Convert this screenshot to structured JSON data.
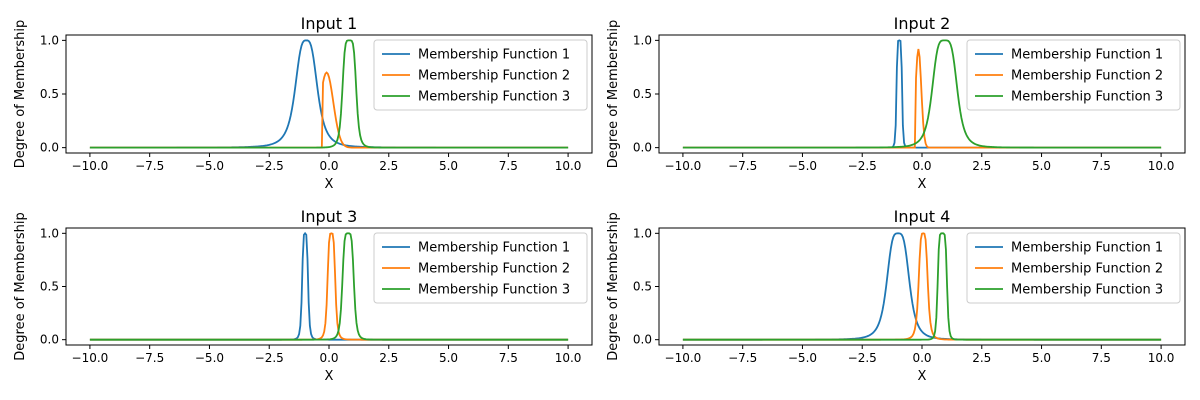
{
  "chart_data": [
    {
      "type": "line",
      "title": "Input 1",
      "xlabel": "X",
      "ylabel": "Degree of Membership",
      "xlim": [
        -11,
        11
      ],
      "ylim": [
        -0.05,
        1.05
      ],
      "xticks": [
        "−10.0",
        "−7.5",
        "−5.0",
        "−2.5",
        "0.0",
        "2.5",
        "5.0",
        "7.5",
        "10.0"
      ],
      "yticks": [
        "0.0",
        "0.5",
        "1.0"
      ],
      "grid": false,
      "legend_position": "top-right",
      "series": [
        {
          "name": "Membership Function 1",
          "color": "#1f77b4",
          "shape": "generalized-bell",
          "center": -0.95,
          "width": 0.5,
          "slope": 1.6,
          "peak": 1.0
        },
        {
          "name": "Membership Function 2",
          "color": "#ff7f0e",
          "shape": "one-sided-gaussian",
          "center": -0.1,
          "sigma": 0.28,
          "support_start": -0.3,
          "peak": 0.7
        },
        {
          "name": "Membership Function 3",
          "color": "#2ca02c",
          "shape": "generalized-bell",
          "center": 0.85,
          "width": 0.3,
          "slope": 2.5,
          "peak": 1.0
        }
      ]
    },
    {
      "type": "line",
      "title": "Input 2",
      "xlabel": "X",
      "ylabel": "Degree of Membership",
      "xlim": [
        -11,
        11
      ],
      "ylim": [
        -0.05,
        1.05
      ],
      "xticks": [
        "−10.0",
        "−7.5",
        "−5.0",
        "−2.5",
        "0.0",
        "2.5",
        "5.0",
        "7.5",
        "10.0"
      ],
      "yticks": [
        "0.0",
        "0.5",
        "1.0"
      ],
      "grid": false,
      "legend_position": "top-right",
      "series": [
        {
          "name": "Membership Function 1",
          "color": "#1f77b4",
          "shape": "generalized-bell",
          "center": -0.95,
          "width": 0.12,
          "slope": 3.0,
          "peak": 1.0
        },
        {
          "name": "Membership Function 2",
          "color": "#ff7f0e",
          "shape": "one-sided-gaussian",
          "center": -0.15,
          "sigma": 0.12,
          "support_start": -0.3,
          "peak": 0.92
        },
        {
          "name": "Membership Function 3",
          "color": "#2ca02c",
          "shape": "generalized-bell",
          "center": 0.95,
          "width": 0.55,
          "slope": 2.0,
          "peak": 1.0
        }
      ]
    },
    {
      "type": "line",
      "title": "Input 3",
      "xlabel": "X",
      "ylabel": "Degree of Membership",
      "xlim": [
        -11,
        11
      ],
      "ylim": [
        -0.05,
        1.05
      ],
      "xticks": [
        "−10.0",
        "−7.5",
        "−5.0",
        "−2.5",
        "0.0",
        "2.5",
        "5.0",
        "7.5",
        "10.0"
      ],
      "yticks": [
        "0.0",
        "0.5",
        "1.0"
      ],
      "grid": false,
      "legend_position": "top-right",
      "series": [
        {
          "name": "Membership Function 1",
          "color": "#1f77b4",
          "shape": "generalized-bell",
          "center": -1.0,
          "width": 0.13,
          "slope": 2.2,
          "peak": 1.0
        },
        {
          "name": "Membership Function 2",
          "color": "#ff7f0e",
          "shape": "generalized-bell",
          "center": 0.1,
          "width": 0.17,
          "slope": 2.2,
          "peak": 1.0
        },
        {
          "name": "Membership Function 3",
          "color": "#2ca02c",
          "shape": "generalized-bell",
          "center": 0.8,
          "width": 0.25,
          "slope": 2.5,
          "peak": 1.0
        }
      ]
    },
    {
      "type": "line",
      "title": "Input 4",
      "xlabel": "X",
      "ylabel": "Degree of Membership",
      "xlim": [
        -11,
        11
      ],
      "ylim": [
        -0.05,
        1.05
      ],
      "xticks": [
        "−10.0",
        "−7.5",
        "−5.0",
        "−2.5",
        "0.0",
        "2.5",
        "5.0",
        "7.5",
        "10.0"
      ],
      "yticks": [
        "0.0",
        "0.5",
        "1.0"
      ],
      "grid": false,
      "legend_position": "top-right",
      "series": [
        {
          "name": "Membership Function 1",
          "color": "#1f77b4",
          "shape": "generalized-bell",
          "center": -1.0,
          "width": 0.5,
          "slope": 1.8,
          "peak": 1.0
        },
        {
          "name": "Membership Function 2",
          "color": "#ff7f0e",
          "shape": "generalized-bell",
          "center": 0.05,
          "width": 0.2,
          "slope": 2.0,
          "peak": 1.0
        },
        {
          "name": "Membership Function 3",
          "color": "#2ca02c",
          "shape": "generalized-bell",
          "center": 0.85,
          "width": 0.2,
          "slope": 3.0,
          "peak": 1.0
        }
      ]
    }
  ]
}
